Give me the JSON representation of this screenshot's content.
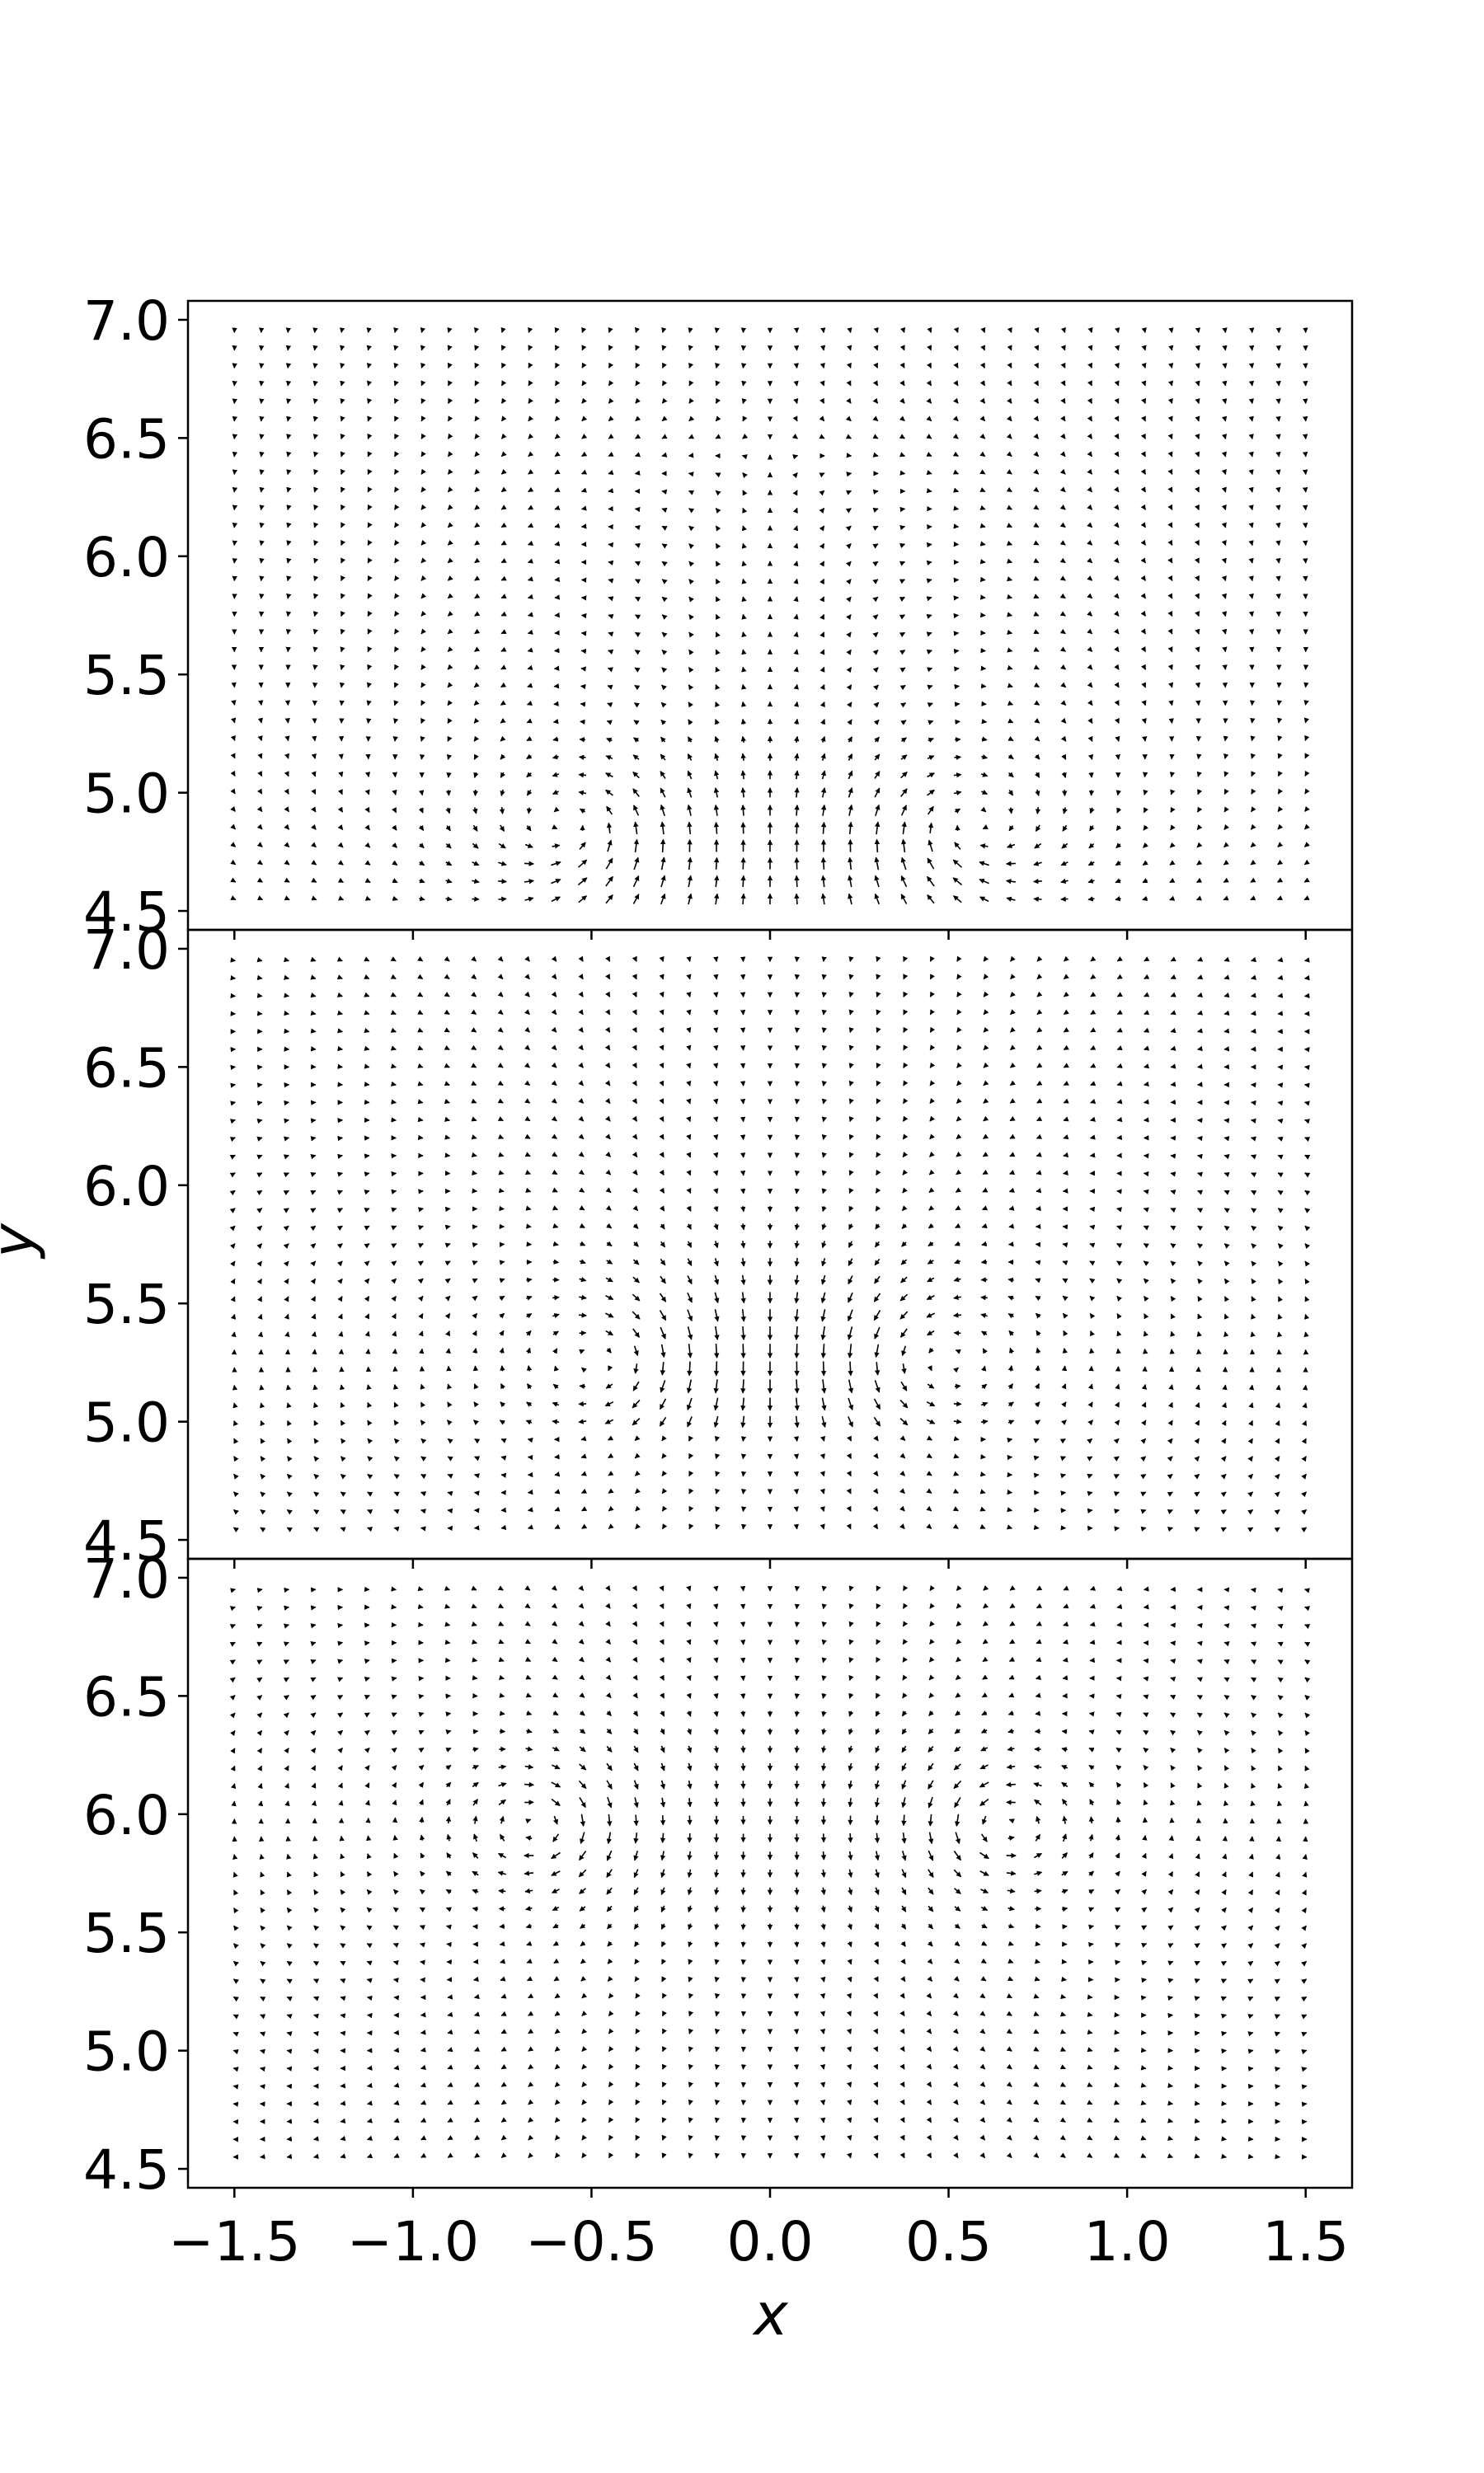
{
  "chart_data": [
    {
      "type": "quiver",
      "panel": "top",
      "xlim": [
        -1.63,
        1.63
      ],
      "ylim": [
        4.42,
        7.08
      ],
      "xticks": [
        -1.5,
        -1.0,
        -0.5,
        0.0,
        0.5,
        1.0,
        1.5
      ],
      "yticks": [
        4.5,
        5.0,
        5.5,
        6.0,
        6.5,
        7.0
      ],
      "ytick_labels": [
        "4.5",
        "5.0",
        "5.5",
        "6.0",
        "6.5",
        "7.0"
      ],
      "grid": false,
      "grid_x": {
        "start": -1.5,
        "stop": 1.5,
        "step": 0.075
      },
      "grid_y": {
        "start": 4.55,
        "stop": 6.95,
        "step": 0.075
      },
      "field_description": "dipole-like field with sources at (±0.55, 4.85); arrows sweep from the edges downward toward the centre line, strongest near y = 4.6–5.0",
      "sources": [
        {
          "x": -0.55,
          "y": 4.85
        },
        {
          "x": 0.55,
          "y": 4.85
        }
      ]
    },
    {
      "type": "quiver",
      "panel": "middle",
      "xlim": [
        -1.63,
        1.63
      ],
      "ylim": [
        4.42,
        7.08
      ],
      "xticks": [
        -1.5,
        -1.0,
        -0.5,
        0.0,
        0.5,
        1.0,
        1.5
      ],
      "yticks": [
        4.5,
        5.0,
        5.5,
        6.0,
        6.5,
        7.0
      ],
      "ytick_labels": [
        "4.5",
        "5.0",
        "5.5",
        "6.0",
        "6.5",
        "7.0"
      ],
      "grid": false,
      "grid_x": {
        "start": -1.5,
        "stop": 1.5,
        "step": 0.075
      },
      "grid_y": {
        "start": 4.55,
        "stop": 6.95,
        "step": 0.075
      },
      "field_description": "circulating field with strong arrows along y ≈ 5.2 focused near x = 0, weak arrows below y = 5.0",
      "sources": [
        {
          "x": -0.45,
          "y": 5.25
        },
        {
          "x": 0.45,
          "y": 5.25
        }
      ]
    },
    {
      "type": "quiver",
      "panel": "bottom",
      "xlim": [
        -1.63,
        1.63
      ],
      "ylim": [
        4.42,
        7.08
      ],
      "xticks": [
        -1.5,
        -1.0,
        -0.5,
        0.0,
        0.5,
        1.0,
        1.5
      ],
      "xtick_labels": [
        "−1.5",
        "−1.0",
        "−0.5",
        "0.0",
        "0.5",
        "1.0",
        "1.5"
      ],
      "yticks": [
        4.5,
        5.0,
        5.5,
        6.0,
        6.5,
        7.0
      ],
      "ytick_labels": [
        "4.5",
        "5.0",
        "5.5",
        "6.0",
        "6.5",
        "7.0"
      ],
      "grid": false,
      "grid_x": {
        "start": -1.5,
        "stop": 1.5,
        "step": 0.075
      },
      "grid_y": {
        "start": 4.55,
        "stop": 6.95,
        "step": 0.075
      },
      "field_description": "two vortices centred near (±0.65, 5.95) with singular long arrows near the cores; upward flow between them",
      "sources": [
        {
          "x": -0.65,
          "y": 5.95
        },
        {
          "x": 0.65,
          "y": 5.95
        }
      ]
    }
  ],
  "labels": {
    "xlabel": "x",
    "ylabel": "y"
  }
}
